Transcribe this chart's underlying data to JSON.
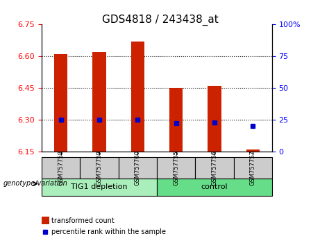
{
  "title": "GDS4818 / 243438_at",
  "samples": [
    "GSM757758",
    "GSM757759",
    "GSM757760",
    "GSM757755",
    "GSM757756",
    "GSM757757"
  ],
  "bar_tops": [
    6.61,
    6.62,
    6.67,
    6.45,
    6.46,
    6.16
  ],
  "bar_base": 6.15,
  "percentile_values": [
    6.3,
    6.3,
    6.302,
    6.285,
    6.287,
    6.272
  ],
  "ylim": [
    6.15,
    6.75
  ],
  "yticks": [
    6.15,
    6.3,
    6.45,
    6.6,
    6.75
  ],
  "right_ylim": [
    0,
    100
  ],
  "right_yticks": [
    0,
    25,
    50,
    75,
    100
  ],
  "right_yticklabels": [
    "0",
    "25",
    "50",
    "75",
    "100%"
  ],
  "bar_color": "#cc2200",
  "percentile_color": "#0000cc",
  "group1_label": "TIG1 depletion",
  "group2_label": "control",
  "group1_indices": [
    0,
    1,
    2
  ],
  "group2_indices": [
    3,
    4,
    5
  ],
  "group_bg1": "#aaeebb",
  "group_bg2": "#66dd88",
  "sample_bg": "#cccccc",
  "legend_red_label": "transformed count",
  "legend_blue_label": "percentile rank within the sample",
  "genotype_label": "genotype/variation",
  "bar_width": 0.35
}
